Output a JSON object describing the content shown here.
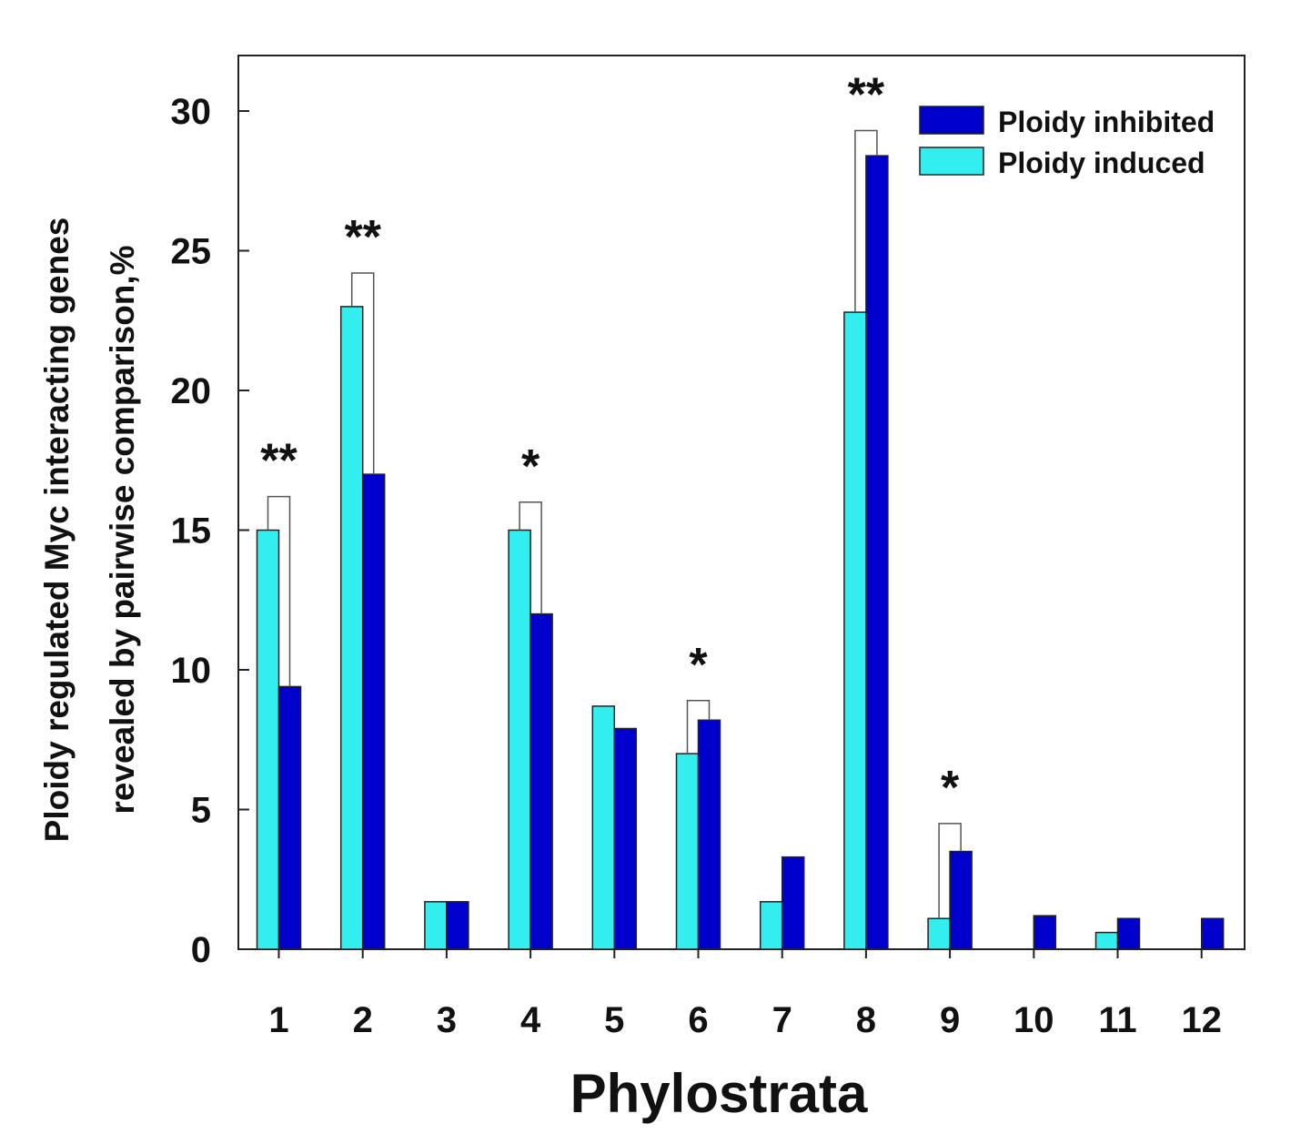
{
  "chart_data": {
    "type": "bar",
    "title": "",
    "xlabel": "Phylostrata",
    "ylabel_line1": "Ploidy regulated Myc interacting genes",
    "ylabel_line2": "revealed by pairwise comparison,%",
    "categories": [
      "1",
      "2",
      "3",
      "4",
      "5",
      "6",
      "7",
      "8",
      "9",
      "10",
      "11",
      "12"
    ],
    "ylim": [
      0,
      32
    ],
    "yticks": [
      0,
      5,
      10,
      15,
      20,
      25,
      30
    ],
    "series": [
      {
        "name": "Ploidy induced",
        "color": "#33eeee",
        "values": [
          15,
          23,
          1.7,
          15,
          8.7,
          7,
          1.7,
          22.8,
          1.1,
          null,
          0.6,
          null
        ]
      },
      {
        "name": "Ploidy inhibited",
        "color": "#0000cc",
        "values": [
          9.4,
          17,
          1.7,
          12,
          7.9,
          8.2,
          3.3,
          28.4,
          3.5,
          1.2,
          1.1,
          1.1
        ]
      }
    ],
    "legend": {
      "position": "top-right",
      "entries": [
        "Ploidy inhibited",
        "Ploidy induced"
      ]
    },
    "annotations": [
      {
        "category": "1",
        "text": "**",
        "bracket_top": 16.2
      },
      {
        "category": "2",
        "text": "**",
        "bracket_top": 24.2
      },
      {
        "category": "4",
        "text": "*",
        "bracket_top": 16.0
      },
      {
        "category": "6",
        "text": "*",
        "bracket_top": 8.9
      },
      {
        "category": "8",
        "text": "**",
        "bracket_top": 29.3
      },
      {
        "category": "9",
        "text": "*",
        "bracket_top": 4.5
      }
    ]
  }
}
